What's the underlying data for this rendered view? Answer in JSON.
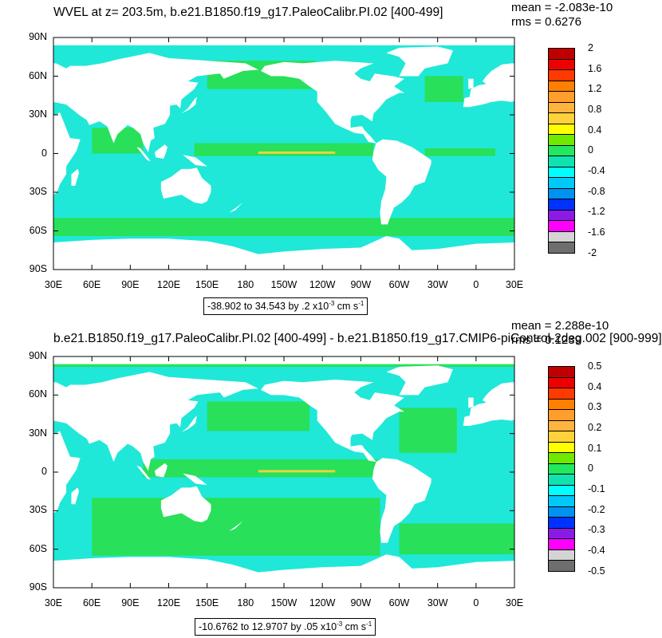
{
  "colors": {
    "ocean_cyan": "#1fe8d8",
    "ocean_green": "#28e05a",
    "land": "#ffffff",
    "frame": "#000000"
  },
  "colorbar_colors": [
    "#c00000",
    "#ee0000",
    "#ff3a00",
    "#ff8000",
    "#ff9e2a",
    "#ffb440",
    "#ffd23c",
    "#ffff00",
    "#70e800",
    "#22e860",
    "#10e2b0",
    "#00ffff",
    "#00c8f8",
    "#0092f0",
    "#0032ff",
    "#8a1ae6",
    "#ff00ff",
    "#d4d4d4",
    "#6e6e6e"
  ],
  "panels": [
    {
      "title": "WVEL at z= 203.5m, b.e21.B1850.f19_g17.PaleoCalibr.PI.02 [400-499]",
      "mean": "mean = -2.083e-10",
      "rms": "rms = 0.6276",
      "range_text": "-38.902 to 34.543 by .2 x10",
      "range_exp": "-3",
      "range_units": " cm s",
      "range_units_exp": "-1",
      "colorbar_labels": [
        "2",
        "1.6",
        "1.2",
        "0.8",
        "0.4",
        "0",
        "-0.4",
        "-0.8",
        "-1.2",
        "-1.6",
        "-2"
      ]
    },
    {
      "title": "b.e21.B1850.f19_g17.PaleoCalibr.PI.02 [400-499] - b.e21.B1850.f19_g17.CMIP6-piControl-2deg.002 [900-999]",
      "mean": "mean = 2.288e-10",
      "rms": "rms = 0.1239",
      "range_text": "-10.6762 to 12.9707 by .05 x10",
      "range_exp": "-3",
      "range_units": " cm s",
      "range_units_exp": "-1",
      "colorbar_labels": [
        "0.5",
        "0.4",
        "0.3",
        "0.2",
        "0.1",
        "0",
        "-0.1",
        "-0.2",
        "-0.3",
        "-0.4",
        "-0.5"
      ]
    }
  ],
  "chart_data": [
    {
      "type": "heatmap",
      "title": "WVEL at z= 203.5m, b.e21.B1850.f19_g17.PaleoCalibr.PI.02 [400-499]",
      "x_tick_labels": [
        "30E",
        "60E",
        "90E",
        "120E",
        "150E",
        "180",
        "150W",
        "120W",
        "90W",
        "60W",
        "30W",
        "0",
        "30E"
      ],
      "y_tick_labels": [
        "90N",
        "60N",
        "30N",
        "0",
        "30S",
        "60S",
        "90S"
      ],
      "xlim": [
        30,
        390
      ],
      "ylim": [
        -90,
        90
      ],
      "colorbar": {
        "min": -2,
        "max": 2,
        "ticks": [
          2,
          1.6,
          1.2,
          0.8,
          0.4,
          0,
          -0.4,
          -0.8,
          -1.2,
          -1.6,
          -2
        ]
      },
      "annotations": [
        "mean = -2.083e-10",
        "rms = 0.6276",
        "-38.902 to 34.543 by .2 x10-3 cm s-1"
      ]
    },
    {
      "type": "heatmap",
      "title": "b.e21.B1850.f19_g17.PaleoCalibr.PI.02 [400-499] - b.e21.B1850.f19_g17.CMIP6-piControl-2deg.002 [900-999]",
      "x_tick_labels": [
        "30E",
        "60E",
        "90E",
        "120E",
        "150E",
        "180",
        "150W",
        "120W",
        "90W",
        "60W",
        "30W",
        "0",
        "30E"
      ],
      "y_tick_labels": [
        "90N",
        "60N",
        "30N",
        "0",
        "30S",
        "60S",
        "90S"
      ],
      "xlim": [
        30,
        390
      ],
      "ylim": [
        -90,
        90
      ],
      "colorbar": {
        "min": -0.5,
        "max": 0.5,
        "ticks": [
          0.5,
          0.4,
          0.3,
          0.2,
          0.1,
          0,
          -0.1,
          -0.2,
          -0.3,
          -0.4,
          -0.5
        ]
      },
      "annotations": [
        "mean = 2.288e-10",
        "rms = 0.1239",
        "-10.6762 to 12.9707 by .05 x10-3 cm s-1"
      ]
    }
  ]
}
